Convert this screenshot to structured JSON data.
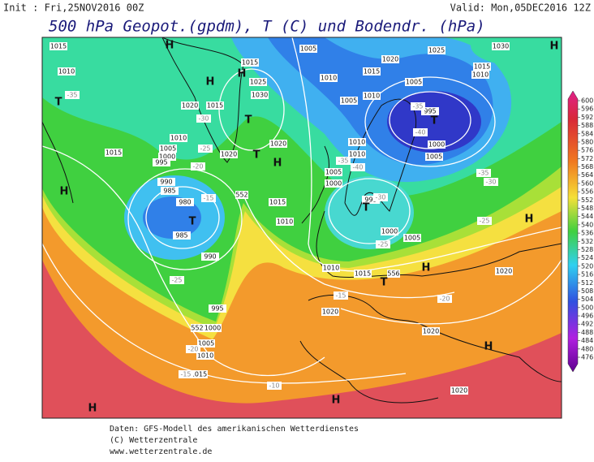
{
  "header": {
    "init": "Init : Fri,25NOV2016 00Z",
    "valid": "Valid: Mon,05DEC2016 12Z",
    "title": "500 hPa Geopot.(gpdm), T (C) und Bodendr. (hPa)"
  },
  "legend": {
    "ticks": [
      600,
      596,
      592,
      588,
      584,
      580,
      576,
      572,
      568,
      564,
      560,
      556,
      552,
      548,
      544,
      540,
      536,
      532,
      528,
      524,
      520,
      516,
      512,
      508,
      504,
      500,
      496,
      492,
      488,
      484,
      480,
      476
    ]
  },
  "map": {
    "isobar_labels": [
      "1015",
      "1010",
      "1020",
      "1015",
      "1030",
      "1025",
      "1015",
      "1005",
      "1010",
      "1005",
      "1010",
      "1020",
      "1015",
      "1025",
      "1030",
      "1015",
      "1010",
      "1005",
      "1000",
      "1005",
      "995",
      "1010",
      "1005",
      "1000",
      "995",
      "1015",
      "990",
      "985",
      "980",
      "985",
      "990",
      "995",
      "1000",
      "1005",
      "1010",
      "1015",
      "1020",
      "1020",
      "1015",
      "1010",
      "1005",
      "1000",
      "995",
      "1000",
      "1005",
      "1010",
      "1015",
      "1020",
      "1020",
      "1020",
      "1020",
      "1010",
      "1010"
    ],
    "temperature_labels": [
      "-35",
      "-30",
      "-25",
      "-20",
      "-15",
      "-25",
      "-20",
      "-15",
      "-10",
      "-35",
      "-40",
      "-30",
      "-25",
      "-15",
      "-20",
      "-35",
      "-40",
      "-35",
      "-30",
      "-25"
    ],
    "geopotential_labels": [
      "552",
      "556",
      "552"
    ],
    "pressure_centers": [
      "H",
      "H",
      "H",
      "T",
      "T",
      "T",
      "H",
      "H",
      "T",
      "T",
      "H",
      "H",
      "T",
      "T",
      "H",
      "H",
      "H",
      "H"
    ]
  },
  "footer": [
    "Daten: GFS-Modell des amerikanischen Wetterdienstes",
    "(C) Wetterzentrale",
    "www.wetterzentrale.de"
  ]
}
